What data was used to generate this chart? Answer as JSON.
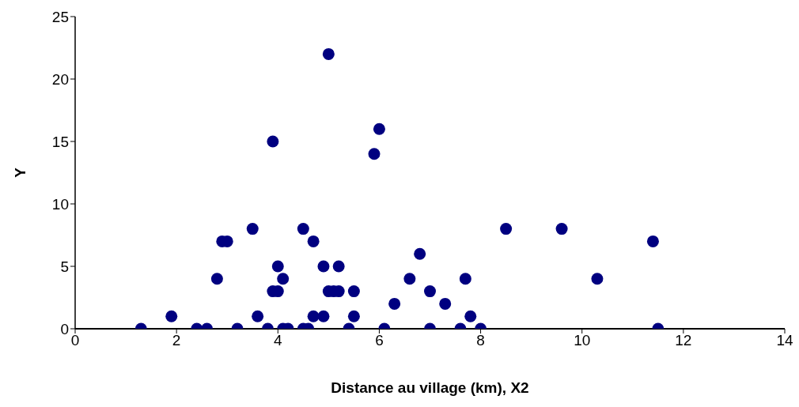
{
  "chart_data": {
    "type": "scatter",
    "xlabel": "Distance au village (km), X2",
    "ylabel": "Y",
    "x": [
      1.3,
      1.9,
      2.4,
      2.6,
      2.8,
      2.9,
      3.0,
      3.2,
      3.5,
      3.6,
      3.8,
      3.9,
      3.9,
      4.0,
      4.0,
      4.1,
      4.1,
      4.2,
      4.5,
      4.5,
      4.6,
      4.7,
      4.7,
      4.9,
      4.9,
      5.0,
      5.0,
      5.1,
      5.2,
      5.2,
      5.4,
      5.5,
      5.5,
      5.9,
      6.0,
      6.1,
      6.3,
      6.6,
      6.8,
      7.0,
      7.0,
      7.3,
      7.6,
      7.7,
      7.8,
      8.0,
      8.5,
      9.6,
      10.3,
      11.4,
      11.5
    ],
    "values": [
      0,
      1,
      0,
      0,
      4,
      7,
      7,
      0,
      8,
      1,
      0,
      3,
      15,
      3,
      5,
      0,
      4,
      0,
      8,
      0,
      0,
      7,
      1,
      5,
      1,
      3,
      22,
      3,
      3,
      5,
      0,
      3,
      1,
      14,
      16,
      0,
      2,
      4,
      6,
      3,
      0,
      2,
      0,
      4,
      1,
      0,
      8,
      8,
      4,
      7,
      0
    ],
    "color": "#000080",
    "marker": "circle",
    "xlim": [
      0,
      14
    ],
    "xticks": [
      0,
      2,
      4,
      6,
      8,
      10,
      12,
      14
    ],
    "ylim": [
      0,
      25
    ],
    "yticks": [
      0,
      5,
      10,
      15,
      20,
      25
    ],
    "grid": false,
    "legend": false
  }
}
